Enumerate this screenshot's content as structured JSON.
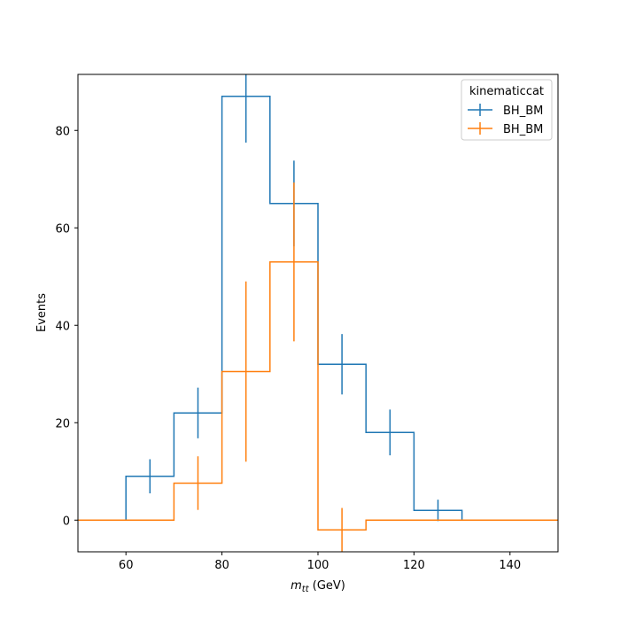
{
  "chart_data": {
    "type": "step-histogram",
    "xlabel_main": "m",
    "xlabel_sub": "tt",
    "xlabel_unit": " (GeV)",
    "ylabel": "Events",
    "xlim": [
      50,
      150
    ],
    "ylim": [
      -6.5,
      91.5
    ],
    "xticks": [
      60,
      80,
      100,
      120,
      140
    ],
    "yticks": [
      0,
      20,
      40,
      60,
      80
    ],
    "grid": false,
    "legend": {
      "title": "kinematiccat",
      "placement": "top-right"
    },
    "series": [
      {
        "name": "BH_BM",
        "color": "#1f77b4",
        "bin_edges": [
          50,
          60,
          70,
          80,
          90,
          100,
          110,
          120,
          130,
          140,
          150
        ],
        "values": [
          0,
          9,
          22,
          87,
          65,
          32,
          18,
          2,
          0,
          0
        ],
        "errors": [
          0,
          3.5,
          5.2,
          9.5,
          8.8,
          6.2,
          4.7,
          2.2,
          0,
          0
        ]
      },
      {
        "name": "BH_BM",
        "color": "#ff7f0e",
        "bin_edges": [
          50,
          60,
          70,
          80,
          90,
          100,
          110,
          120,
          130,
          140,
          150
        ],
        "values": [
          0,
          0,
          7.6,
          30.5,
          53,
          -2,
          0,
          0,
          0,
          0
        ],
        "errors": [
          0,
          0,
          5.5,
          18.5,
          16.3,
          4.5,
          0,
          0,
          0,
          0
        ]
      }
    ]
  }
}
